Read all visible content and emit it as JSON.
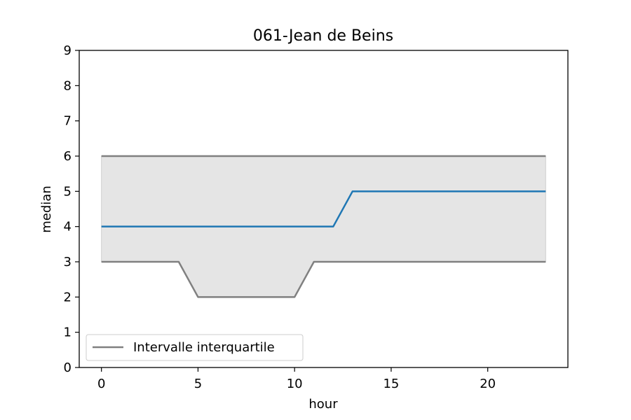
{
  "chart_data": {
    "type": "line",
    "title": "061-Jean de Beins",
    "xlabel": "hour",
    "ylabel": "median",
    "xlim": [
      -1.15,
      24.15
    ],
    "ylim": [
      0,
      9
    ],
    "xticks": [
      0,
      5,
      10,
      15,
      20
    ],
    "yticks": [
      0,
      1,
      2,
      3,
      4,
      5,
      6,
      7,
      8,
      9
    ],
    "x": [
      0,
      1,
      2,
      3,
      4,
      5,
      6,
      7,
      8,
      9,
      10,
      11,
      12,
      13,
      14,
      15,
      16,
      17,
      18,
      19,
      20,
      21,
      22,
      23
    ],
    "median": [
      4,
      4,
      4,
      4,
      4,
      4,
      4,
      4,
      4,
      4,
      4,
      4,
      4,
      5,
      5,
      5,
      5,
      5,
      5,
      5,
      5,
      5,
      5,
      5
    ],
    "q1": [
      3,
      3,
      3,
      3,
      3,
      2,
      2,
      2,
      2,
      2,
      2,
      3,
      3,
      3,
      3,
      3,
      3,
      3,
      3,
      3,
      3,
      3,
      3,
      3
    ],
    "q3": [
      6,
      6,
      6,
      6,
      6,
      6,
      6,
      6,
      6,
      6,
      6,
      6,
      6,
      6,
      6,
      6,
      6,
      6,
      6,
      6,
      6,
      6,
      6,
      6
    ],
    "legend": {
      "placement": "lower-left",
      "entries": [
        {
          "label": "Intervalle interquartile",
          "color": "#808080"
        }
      ]
    },
    "colors": {
      "median": "#1f77b4",
      "quartile": "#808080",
      "band": "#e5e5e5"
    },
    "grid": false
  }
}
